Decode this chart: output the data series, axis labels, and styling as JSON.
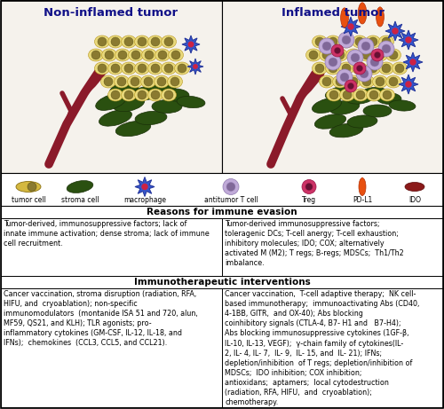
{
  "title_left": "Non-inflamed tumor",
  "title_right": "Inflamed tumor",
  "legend_labels": [
    "tumor cell",
    "stroma cell",
    "macrophage",
    "antitumor T cell",
    "Treg",
    "PD-L1",
    "IDO"
  ],
  "section1_header": "Reasons for immune evasion",
  "section1_left": "Tumor-derived, immunosuppressive factors; lack of\ninnate immune activation; dense stroma; lack of immune\ncell recruitment.",
  "section1_right": "Tumor-derived immunosuppressive factors;\ntoleragenic DCs; T-cell anergy; T-cell exhaustion;\ninhibitory molecules; IDO; COX; alternatively\nactivated M (M2); T regs; B-regs; MDSCs;  Th1/Th2\nimbalance.",
  "section2_header": "Immunotherapeutic interventions",
  "section2_left": "Cancer vaccination, stroma disruption (radiation, RFA,\nHIFU, and  cryoablation); non-specific\nimmunomodulators  (montanide ISA 51 and 720, alun,\nMF59, QS21, and KLH); TLR agonists; pro-\ninflammatory cytokines (GM-CSF, IL-12, IL-18, and\nIFNs);  chemokines  (CCL3, CCL5, and CCL21).",
  "section2_right": "Cancer vaccination,  T-cell adaptive therapy;  NK cell-\nbased immunotherapy;  immunoactivating Abs (CD40,\n4-1BB, GITR,  and OX-40); Abs blocking\ncoinhibitory signals (CTLA-4, B7- H1 and   B7-H4);\nAbs blocking immunosuppressive cytokines (1GF-β,\nIL-10, IL-13, VEGF);  γ-chain family of cytokines(IL-\n2, IL- 4, IL- 7,  IL- 9,  IL- 15, and  IL- 21); IFNs;\ndepletion/inhibition  of T regs; depletion/inhibition of\nMDSCs;  IDO inhibition; COX inhibition;\nantioxidans;  aptamers;  local cytodestruction\n(radiation, RFA, HIFU,  and  cryoablation);\nchemotherapy.",
  "bg": "#f0ede8",
  "panel_bg": "#f5f2ec",
  "white": "#ffffff",
  "black": "#000000",
  "tumor_yellow": "#e8d87a",
  "tumor_edge": "#b89820",
  "nucleus_fill": "#8a7a30",
  "nucleus_edge": "#5a5010",
  "stroma_fill": "#2a5010",
  "stroma_edge": "#1a3008",
  "branch_color": "#8b1a2a",
  "macro_fill": "#3355cc",
  "macro_edge": "#223399",
  "macro_center": "#cc2244",
  "tcell_fill": "#c0aad8",
  "tcell_edge": "#907ab0",
  "tcell_nucleus": "#806898",
  "treg_fill": "#cc3366",
  "treg_edge": "#991144",
  "treg_nucleus": "#661133",
  "pdl1_fill": "#e85010",
  "pdl1_edge": "#b03008",
  "ido_fill": "#8b1a1a",
  "ido_edge": "#5a0808"
}
